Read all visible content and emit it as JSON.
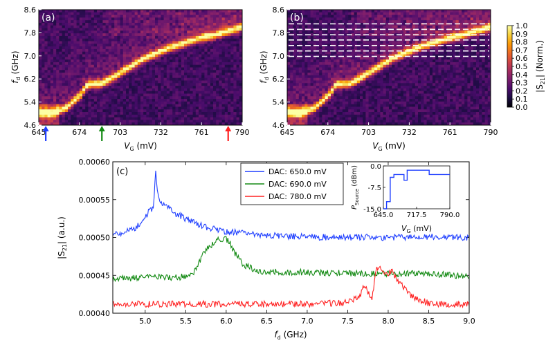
{
  "panels": {
    "a": {
      "label": "(a)",
      "ylabel_main": "f",
      "ylabel_sub": "d",
      "ylabel_unit": " (GHz)",
      "xlabel_main": "V",
      "xlabel_sub": "G",
      "xlabel_unit": " (mV)",
      "yticks": [
        "8.6",
        "7.8",
        "7.0",
        "6.2",
        "5.4",
        "4.6"
      ],
      "xticks": [
        "645",
        "674",
        "703",
        "732",
        "761",
        "790"
      ],
      "arrows": [
        {
          "vg": 650,
          "color": "#1f3fff"
        },
        {
          "vg": 690,
          "color": "#138a13"
        },
        {
          "vg": 780,
          "color": "#ff2222"
        }
      ]
    },
    "b": {
      "label": "(b)",
      "ylabel_main": "f",
      "ylabel_sub": "d",
      "ylabel_unit": " (GHz)",
      "xlabel_main": "V",
      "xlabel_sub": "G",
      "xlabel_unit": " (mV)",
      "yticks": [
        "8.6",
        "7.8",
        "7.0",
        "6.2",
        "5.4",
        "4.6"
      ],
      "xticks": [
        "645",
        "674",
        "703",
        "732",
        "761",
        "790"
      ],
      "dashed_freqs_ghz": [
        6.98,
        7.17,
        7.36,
        7.55,
        7.73,
        7.92,
        8.11
      ]
    },
    "colorbar": {
      "ticks": [
        "1.0",
        "0.9",
        "0.8",
        "0.7",
        "0.6",
        "0.5",
        "0.4",
        "0.3",
        "0.2",
        "0.1",
        "0.0"
      ],
      "label_main": "|S",
      "label_sub": "21",
      "label_end": "| (Norm.)",
      "colors": [
        "#000004",
        "#1b0c41",
        "#4a0c6b",
        "#781c6d",
        "#a52c60",
        "#cf4446",
        "#ed6925",
        "#fb9b06",
        "#f7d13d",
        "#fcffa4"
      ]
    },
    "c": {
      "label": "(c)",
      "ylabel_main": "|S",
      "ylabel_sub": "21",
      "ylabel_end": "| (a.u.)",
      "xlabel_main": "f",
      "xlabel_sub": "d",
      "xlabel_unit": " (GHz)",
      "yticks": [
        "0.00060",
        "0.00055",
        "0.00050",
        "0.00045",
        "0.00040"
      ],
      "xticks": [
        "5.0",
        "5.5",
        "6.0",
        "6.5",
        "7.0",
        "7.5",
        "8.0",
        "8.5",
        "9.0"
      ],
      "legend": [
        {
          "label": "DAC: 650.0 mV",
          "color": "#1f3fff"
        },
        {
          "label": "DAC: 690.0 mV",
          "color": "#138a13"
        },
        {
          "label": "DAC: 780.0 mV",
          "color": "#ff2222"
        }
      ],
      "inset": {
        "ylabel_main": "P",
        "ylabel_sub": "Source",
        "ylabel_unit": " (dBm)",
        "xlabel_main": "V",
        "xlabel_sub": "G",
        "xlabel_unit": " (mV)",
        "yticks": [
          "0.0",
          "-7.5",
          "-15.0"
        ],
        "xticks": [
          "645.0",
          "717.5",
          "790.0"
        ]
      }
    }
  },
  "chart_data": [
    {
      "type": "heatmap",
      "title": "(a)",
      "xlabel": "V_G (mV)",
      "ylabel": "f_d (GHz)",
      "xlim": [
        645,
        790
      ],
      "ylim": [
        4.6,
        8.6
      ],
      "colorbar_label": "|S21| (Norm.)",
      "clim": [
        0.0,
        1.0
      ],
      "resonance_ridge": {
        "vg_mV": [
          645,
          655,
          665,
          675,
          680,
          690,
          700,
          710,
          720,
          730,
          740,
          750,
          760,
          770,
          780,
          790
        ],
        "fd_GHz": [
          5.02,
          5.0,
          5.2,
          5.65,
          6.0,
          6.02,
          6.3,
          6.6,
          6.9,
          7.1,
          7.3,
          7.45,
          7.6,
          7.7,
          7.85,
          8.0
        ]
      },
      "markers_vg_mV": [
        650,
        690,
        780
      ]
    },
    {
      "type": "heatmap",
      "title": "(b)",
      "xlabel": "V_G (mV)",
      "ylabel": "f_d (GHz)",
      "xlim": [
        645,
        790
      ],
      "ylim": [
        4.6,
        8.6
      ],
      "dashed_lines_GHz": [
        6.98,
        7.17,
        7.36,
        7.55,
        7.73,
        7.92,
        8.11
      ]
    },
    {
      "type": "line",
      "title": "(c)",
      "xlabel": "f_d (GHz)",
      "ylabel": "|S21| (a.u.)",
      "xlim": [
        4.6,
        9.0
      ],
      "ylim": [
        0.0004,
        0.0006
      ],
      "series": [
        {
          "name": "DAC: 650.0 mV",
          "x": [
            4.6,
            4.8,
            4.9,
            5.0,
            5.05,
            5.1,
            5.13,
            5.15,
            5.17,
            5.2,
            5.3,
            5.4,
            5.6,
            5.8,
            6.0,
            6.5,
            7.0,
            7.5,
            8.0,
            8.5,
            9.0
          ],
          "y": [
            0.000505,
            0.000508,
            0.000515,
            0.000525,
            0.000535,
            0.00054,
            0.000588,
            0.00056,
            0.000548,
            0.000545,
            0.000538,
            0.00053,
            0.00052,
            0.000512,
            0.000508,
            0.000503,
            0.000501,
            0.0005,
            0.0005,
            0.000501,
            0.0005
          ]
        },
        {
          "name": "DAC: 690.0 mV",
          "x": [
            4.6,
            5.0,
            5.5,
            5.6,
            5.65,
            5.7,
            5.75,
            5.8,
            5.85,
            5.9,
            5.95,
            6.0,
            6.05,
            6.1,
            6.2,
            6.4,
            7.0,
            7.5,
            8.0,
            8.5,
            9.0
          ],
          "y": [
            0.000445,
            0.000447,
            0.000448,
            0.000455,
            0.000462,
            0.000475,
            0.000485,
            0.000488,
            0.000492,
            0.0005,
            0.000495,
            0.000498,
            0.000492,
            0.00048,
            0.000465,
            0.000455,
            0.000454,
            0.000453,
            0.000452,
            0.000452,
            0.000449
          ]
        },
        {
          "name": "DAC: 780.0 mV",
          "x": [
            4.6,
            5.0,
            6.0,
            7.0,
            7.5,
            7.65,
            7.7,
            7.75,
            7.8,
            7.85,
            7.9,
            7.95,
            8.0,
            8.05,
            8.1,
            8.3,
            8.5,
            9.0
          ],
          "y": [
            0.000412,
            0.000412,
            0.000412,
            0.000412,
            0.000414,
            0.000422,
            0.000435,
            0.000428,
            0.00042,
            0.000455,
            0.000465,
            0.00045,
            0.000452,
            0.000458,
            0.000445,
            0.000422,
            0.000413,
            0.000411
          ]
        }
      ]
    },
    {
      "type": "line",
      "title": "inset",
      "xlabel": "V_G (mV)",
      "ylabel": "P_Source (dBm)",
      "xlim": [
        645,
        790
      ],
      "ylim": [
        -15,
        0
      ],
      "series": [
        {
          "name": "P_Source",
          "x": [
            645,
            652,
            652,
            660,
            660,
            668,
            668,
            690,
            690,
            697,
            697,
            705,
            705,
            745,
            745,
            790
          ],
          "y": [
            -15,
            -15,
            -12.5,
            -12.5,
            -4,
            -4,
            -3,
            -3,
            -5,
            -5,
            -1.5,
            -1.5,
            -1.5,
            -1.5,
            -3,
            -3
          ]
        }
      ]
    }
  ]
}
